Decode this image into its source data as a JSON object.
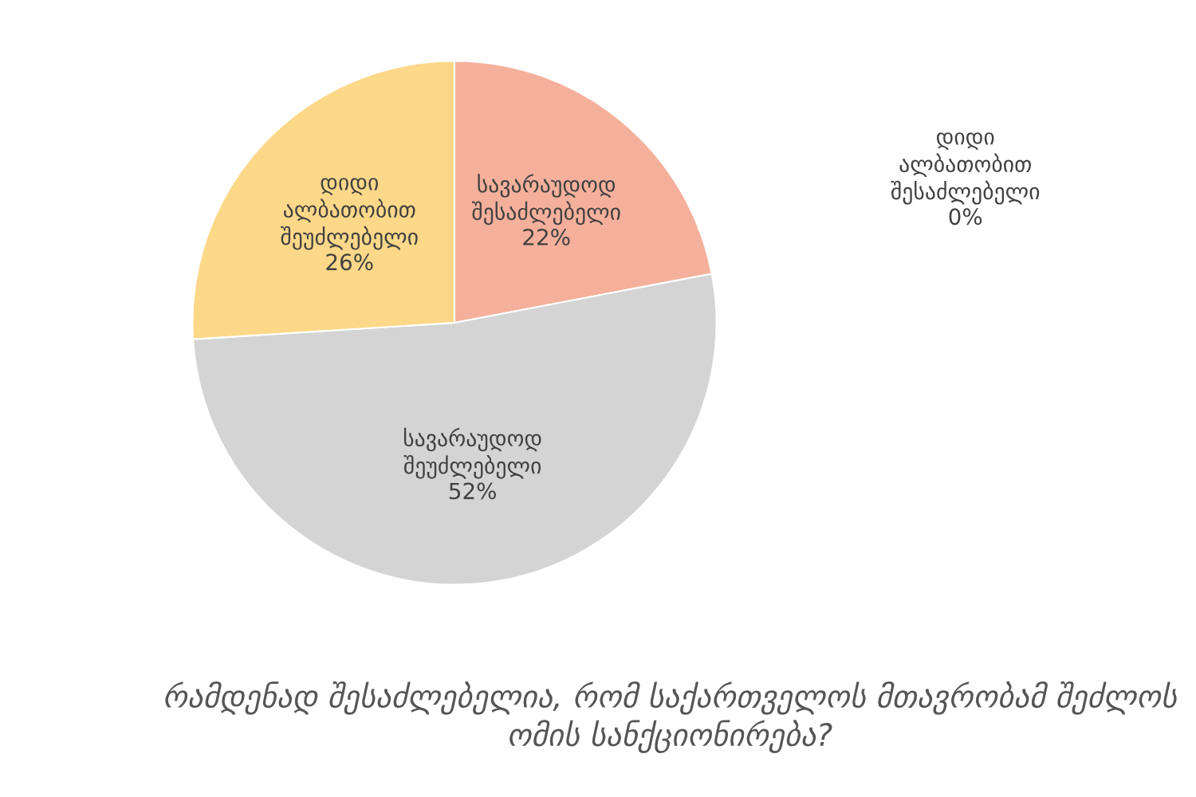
{
  "chart_data": {
    "type": "pie",
    "title": "რამდენად შესაძლებელია, რომ საქართველოს მთავრობამ შეძლოს ომის სანქციონირება?",
    "categories": [
      "დიდი ალბათობით შესაძლებელი",
      "სავარაუდოდ შესაძლებელი",
      "სავარაუდოდ შეუძლებელი",
      "დიდი ალბათობით შეუძლებელი"
    ],
    "values": [
      0,
      22,
      52,
      26
    ],
    "value_labels": [
      "0%",
      "22%",
      "52%",
      "26%"
    ],
    "colors": [
      "#5b9bd5",
      "#f5b09b",
      "#d4d4d4",
      "#fed889"
    ]
  }
}
